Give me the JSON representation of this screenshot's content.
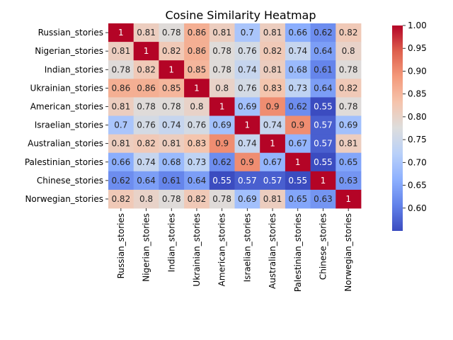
{
  "chart_data": {
    "type": "heatmap",
    "title": "Cosine Similarity Heatmap",
    "xlabel": "",
    "ylabel": "",
    "colormap": "coolwarm",
    "value_range": [
      0.55,
      1.0
    ],
    "colorbar_ticks": [
      "0.60",
      "0.65",
      "0.70",
      "0.75",
      "0.80",
      "0.85",
      "0.90",
      "0.95",
      "1.00"
    ],
    "categories": [
      "Russian_stories",
      "Nigerian_stories",
      "Indian_stories",
      "Ukrainian_stories",
      "American_stories",
      "Israelian_stories",
      "Australian_stories",
      "Palestinian_stories",
      "Chinese_stories",
      "Norwegian_stories"
    ],
    "values": [
      [
        1,
        0.81,
        0.78,
        0.86,
        0.81,
        0.7,
        0.81,
        0.66,
        0.62,
        0.82
      ],
      [
        0.81,
        1,
        0.82,
        0.86,
        0.78,
        0.76,
        0.82,
        0.74,
        0.64,
        0.8
      ],
      [
        0.78,
        0.82,
        1,
        0.85,
        0.78,
        0.74,
        0.81,
        0.68,
        0.61,
        0.78
      ],
      [
        0.86,
        0.86,
        0.85,
        1,
        0.8,
        0.76,
        0.83,
        0.73,
        0.64,
        0.82
      ],
      [
        0.81,
        0.78,
        0.78,
        0.8,
        1,
        0.69,
        0.9,
        0.62,
        0.55,
        0.78
      ],
      [
        0.7,
        0.76,
        0.74,
        0.76,
        0.69,
        1,
        0.74,
        0.9,
        0.57,
        0.69
      ],
      [
        0.81,
        0.82,
        0.81,
        0.83,
        0.9,
        0.74,
        1,
        0.67,
        0.57,
        0.81
      ],
      [
        0.66,
        0.74,
        0.68,
        0.73,
        0.62,
        0.9,
        0.67,
        1,
        0.55,
        0.65
      ],
      [
        0.62,
        0.64,
        0.61,
        0.64,
        0.55,
        0.57,
        0.57,
        0.55,
        1,
        0.63
      ],
      [
        0.82,
        0.8,
        0.78,
        0.82,
        0.78,
        0.69,
        0.81,
        0.65,
        0.63,
        1
      ]
    ]
  }
}
